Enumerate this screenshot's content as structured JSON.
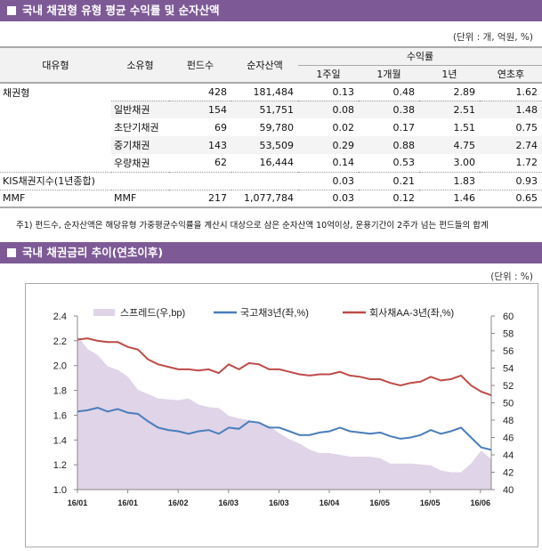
{
  "section1": {
    "title": "국내 채권형 유형 평균 수익률 및 순자산액",
    "unit": "(단위 : 개, 억원, %)"
  },
  "table": {
    "headers": {
      "major": "대유형",
      "minor": "소유형",
      "funds": "펀드수",
      "assets": "순자산액",
      "returns": "수익률",
      "w1": "1주일",
      "m1": "1개월",
      "y1": "1년",
      "ytd": "연초후"
    },
    "rows": [
      {
        "major": "채권형",
        "minor": "",
        "funds": "428",
        "assets": "181,484",
        "w1": "0.13",
        "m1": "0.48",
        "y1": "2.89",
        "ytd": "1.62"
      },
      {
        "major": "",
        "minor": "일반채권",
        "funds": "154",
        "assets": "51,751",
        "w1": "0.08",
        "m1": "0.38",
        "y1": "2.51",
        "ytd": "1.48"
      },
      {
        "major": "",
        "minor": "초단기채권",
        "funds": "69",
        "assets": "59,780",
        "w1": "0.02",
        "m1": "0.17",
        "y1": "1.51",
        "ytd": "0.75"
      },
      {
        "major": "",
        "minor": "중기채권",
        "funds": "143",
        "assets": "53,509",
        "w1": "0.29",
        "m1": "0.88",
        "y1": "4.75",
        "ytd": "2.74"
      },
      {
        "major": "",
        "minor": "우량채권",
        "funds": "62",
        "assets": "16,444",
        "w1": "0.14",
        "m1": "0.53",
        "y1": "3.00",
        "ytd": "1.72"
      },
      {
        "major": "KIS채권지수(1년종합)",
        "minor": "",
        "funds": "",
        "assets": "",
        "w1": "0.03",
        "m1": "0.21",
        "y1": "1.83",
        "ytd": "0.93"
      },
      {
        "major": "MMF",
        "minor": "MMF",
        "funds": "217",
        "assets": "1,077,784",
        "w1": "0.03",
        "m1": "0.12",
        "y1": "1.46",
        "ytd": "0.65"
      }
    ],
    "note": "주1) 펀드수, 순자산액은 해당유형 가중평균수익률을 계산시 대상으로 삼은 순자산액 10억이상, 운용기간이 2주가 넘는 펀드들의 합계"
  },
  "section2": {
    "title": "국내 채권금리 추이(연초이후)",
    "unit": "(단위 : %)"
  },
  "chart_data": {
    "type": "line",
    "xticks": [
      "16/01",
      "16/01",
      "16/02",
      "16/03",
      "16/03",
      "16/04",
      "16/05",
      "16/05",
      "16/06"
    ],
    "ylim_left": [
      1.0,
      2.4
    ],
    "yticks_left": [
      "1.0",
      "1.2",
      "1.4",
      "1.6",
      "1.8",
      "2.0",
      "2.2",
      "2.4"
    ],
    "ylim_right": [
      40,
      60
    ],
    "yticks_right": [
      "40",
      "42",
      "44",
      "46",
      "48",
      "50",
      "52",
      "54",
      "56",
      "58",
      "60"
    ],
    "legend_position": "top",
    "series": [
      {
        "name": "스프레드(우,bp)",
        "type": "area",
        "axis": "right",
        "color": "#e0d4e8",
        "values": [
          57.7,
          56.2,
          55.5,
          54.2,
          53.8,
          53,
          51.5,
          51,
          50.5,
          50.4,
          50.3,
          50.5,
          49.8,
          49.5,
          49.4,
          48.5,
          48.2,
          48,
          47.6,
          47.3,
          46.5,
          45.8,
          45.3,
          44.6,
          44.2,
          44.2,
          44,
          43.8,
          43.8,
          43.8,
          43.6,
          43,
          43,
          43,
          42.9,
          42.8,
          42.2,
          42,
          42,
          43,
          44.5,
          43.5
        ]
      },
      {
        "name": "국고채3년(좌,%)",
        "type": "line",
        "axis": "left",
        "color": "#4a7ebb",
        "values": [
          1.63,
          1.64,
          1.66,
          1.63,
          1.65,
          1.62,
          1.61,
          1.55,
          1.5,
          1.48,
          1.47,
          1.45,
          1.47,
          1.48,
          1.45,
          1.5,
          1.49,
          1.55,
          1.54,
          1.5,
          1.5,
          1.47,
          1.44,
          1.44,
          1.46,
          1.47,
          1.5,
          1.47,
          1.46,
          1.45,
          1.46,
          1.43,
          1.41,
          1.42,
          1.44,
          1.48,
          1.45,
          1.47,
          1.5,
          1.42,
          1.34,
          1.32
        ]
      },
      {
        "name": "회사채AA-3년(좌,%)",
        "type": "line",
        "axis": "left",
        "color": "#be4b48",
        "values": [
          2.21,
          2.22,
          2.2,
          2.19,
          2.19,
          2.15,
          2.13,
          2.05,
          2.01,
          1.99,
          1.97,
          1.97,
          1.96,
          1.97,
          1.94,
          2.01,
          1.97,
          2.02,
          2.01,
          1.97,
          1.97,
          1.95,
          1.93,
          1.92,
          1.93,
          1.93,
          1.95,
          1.92,
          1.91,
          1.89,
          1.89,
          1.86,
          1.84,
          1.86,
          1.87,
          1.91,
          1.88,
          1.89,
          1.92,
          1.84,
          1.79,
          1.76
        ]
      }
    ]
  }
}
